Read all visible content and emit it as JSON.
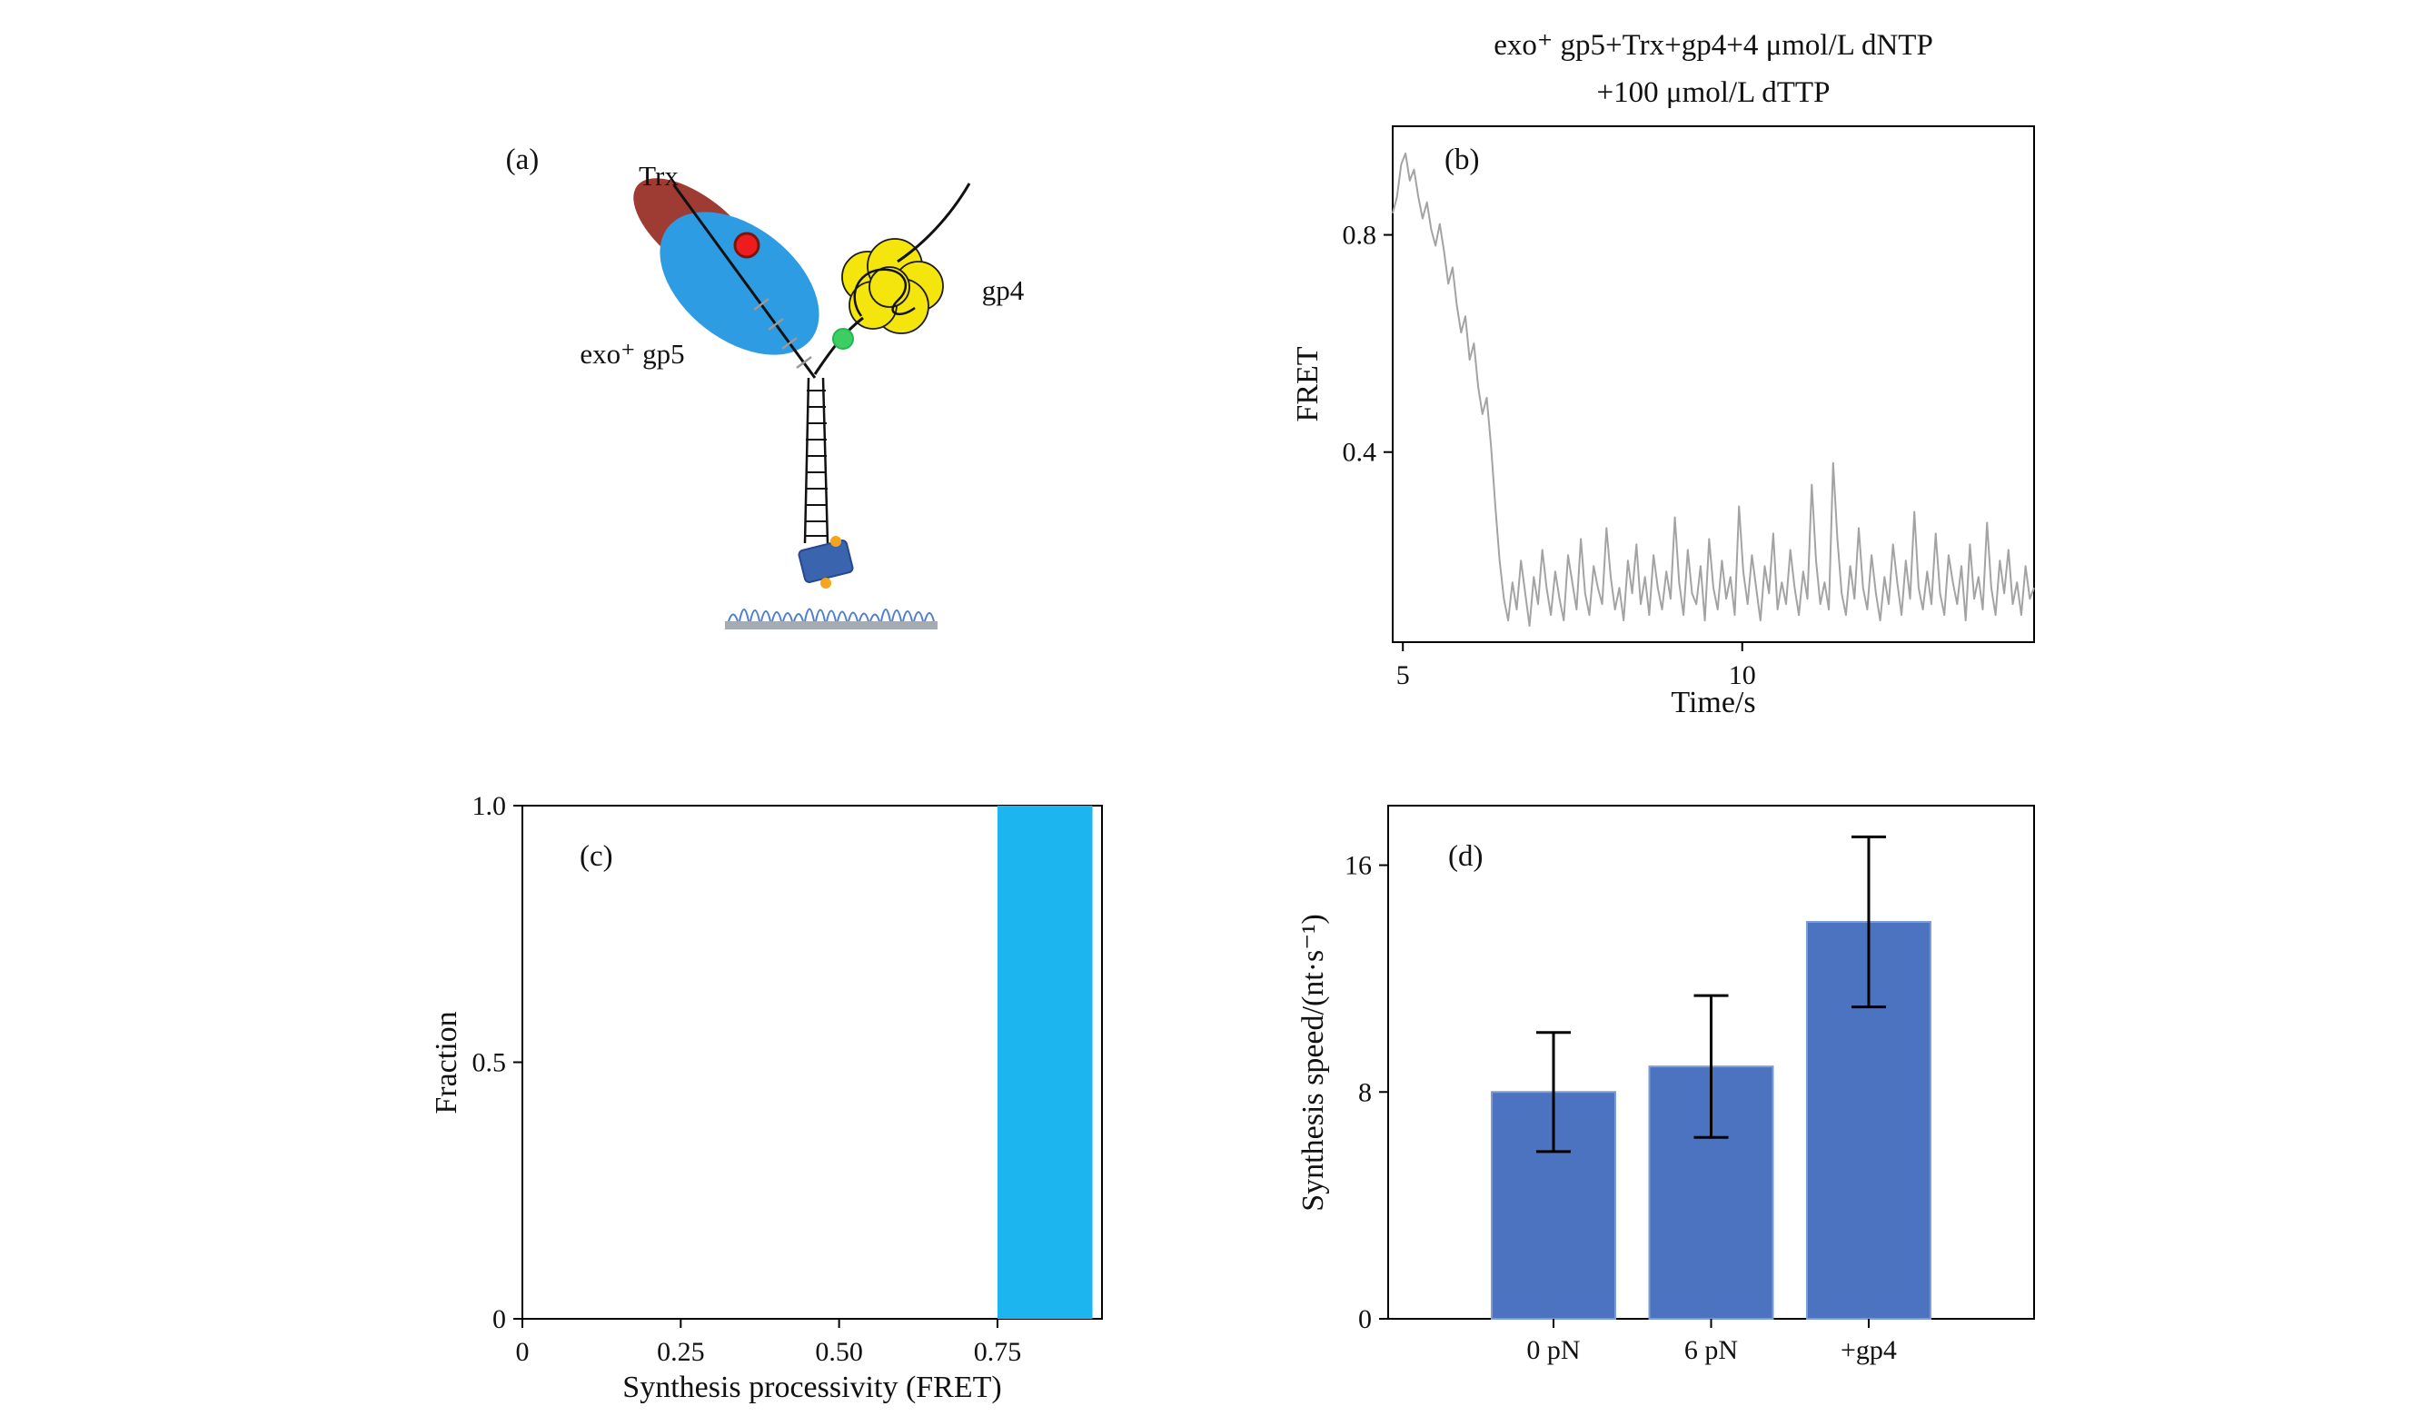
{
  "page": {
    "background": "#ffffff"
  },
  "panel_a": {
    "label": "(a)",
    "trx_label": "Trx",
    "gp5_label": "exo⁺ gp5",
    "gp4_label": "gp4",
    "colors": {
      "trx_fill": "#9e3c33",
      "trx_text": "#b0443a",
      "gp5_fill": "#2d9ce2",
      "gp5_text": "#2a7fd0",
      "gp4_fill": "#f4e60d",
      "gp4_text": "#f0a31c",
      "donor_dot": "#ee1c1c",
      "acceptor_dot": "#3bcf63",
      "anchor_fill": "#3a64ae",
      "anchor_dot": "#f5a51b",
      "surface_brush": "#4f7fca",
      "surface_bar": "#a6abb1",
      "dna_stroke": "#111111",
      "hatch_stroke": "#9a9a9a"
    }
  },
  "chart_data": [
    {
      "id": "panel_b",
      "type": "line",
      "panel_label": "(b)",
      "title_lines": [
        "exo⁺ gp5+Trx+gp4+4 μmol/L dNTP",
        "+100 μmol/L dTTP"
      ],
      "xlabel": "Time/s",
      "ylabel": "FRET",
      "xlim": [
        4.85,
        14.3
      ],
      "ylim": [
        0.05,
        1.0
      ],
      "xticks": [
        {
          "v": 5,
          "label": "5"
        },
        {
          "v": 10,
          "label": "10"
        }
      ],
      "yticks": [
        {
          "v": 0.4,
          "label": "0.4"
        },
        {
          "v": 0.8,
          "label": "0.8"
        }
      ],
      "line_color": "#a3a3a3",
      "x_range": [
        4.85,
        14.3
      ],
      "y": [
        0.84,
        0.87,
        0.93,
        0.95,
        0.9,
        0.92,
        0.87,
        0.83,
        0.86,
        0.81,
        0.78,
        0.82,
        0.77,
        0.71,
        0.74,
        0.67,
        0.62,
        0.65,
        0.57,
        0.6,
        0.52,
        0.47,
        0.5,
        0.41,
        0.3,
        0.2,
        0.13,
        0.09,
        0.16,
        0.11,
        0.2,
        0.14,
        0.08,
        0.17,
        0.12,
        0.22,
        0.15,
        0.1,
        0.18,
        0.13,
        0.09,
        0.21,
        0.16,
        0.11,
        0.24,
        0.14,
        0.1,
        0.19,
        0.15,
        0.12,
        0.26,
        0.17,
        0.11,
        0.15,
        0.09,
        0.2,
        0.14,
        0.23,
        0.12,
        0.17,
        0.1,
        0.21,
        0.15,
        0.11,
        0.18,
        0.13,
        0.28,
        0.16,
        0.1,
        0.22,
        0.14,
        0.12,
        0.19,
        0.09,
        0.24,
        0.15,
        0.11,
        0.2,
        0.13,
        0.17,
        0.1,
        0.3,
        0.18,
        0.12,
        0.21,
        0.15,
        0.09,
        0.19,
        0.14,
        0.25,
        0.11,
        0.16,
        0.12,
        0.22,
        0.15,
        0.1,
        0.18,
        0.13,
        0.34,
        0.2,
        0.12,
        0.16,
        0.11,
        0.38,
        0.24,
        0.14,
        0.1,
        0.19,
        0.13,
        0.26,
        0.15,
        0.11,
        0.21,
        0.14,
        0.09,
        0.17,
        0.12,
        0.23,
        0.16,
        0.1,
        0.2,
        0.13,
        0.29,
        0.15,
        0.11,
        0.18,
        0.12,
        0.25,
        0.14,
        0.1,
        0.21,
        0.16,
        0.12,
        0.19,
        0.09,
        0.23,
        0.13,
        0.17,
        0.11,
        0.27,
        0.15,
        0.1,
        0.2,
        0.14,
        0.22,
        0.12,
        0.16,
        0.1,
        0.19,
        0.13,
        0.15
      ]
    },
    {
      "id": "panel_c",
      "type": "bar-range",
      "panel_label": "(c)",
      "xlabel": "Synthesis processivity (FRET)",
      "ylabel": "Fraction",
      "xlim": [
        0,
        0.915
      ],
      "ylim": [
        0,
        1.0
      ],
      "xticks": [
        {
          "v": 0,
          "label": "0"
        },
        {
          "v": 0.25,
          "label": "0.25"
        },
        {
          "v": 0.5,
          "label": "0.50"
        },
        {
          "v": 0.75,
          "label": "0.75"
        }
      ],
      "yticks": [
        {
          "v": 0,
          "label": "0"
        },
        {
          "v": 0.5,
          "label": "0.5"
        },
        {
          "v": 1.0,
          "label": "1.0"
        }
      ],
      "bar_color": "#1db5ef",
      "bars": [
        {
          "x_start": 0.75,
          "x_end": 0.9,
          "height": 1.0
        }
      ]
    },
    {
      "id": "panel_d",
      "type": "bar-category",
      "panel_label": "(d)",
      "ylabel": "Synthesis speed/(nt·s⁻¹)",
      "categories": [
        "0 pN",
        "6 pN",
        "+gp4"
      ],
      "values": [
        8.0,
        8.9,
        14.0
      ],
      "errors": [
        2.1,
        2.5,
        3.0
      ],
      "ylim": [
        0,
        18.1
      ],
      "yticks": [
        {
          "v": 0,
          "label": "0"
        },
        {
          "v": 8,
          "label": "8"
        },
        {
          "v": 16,
          "label": "16"
        }
      ],
      "bar_color": "#4c73c0",
      "bar_edge": "#7d9cd6",
      "error_color": "#000000"
    }
  ]
}
